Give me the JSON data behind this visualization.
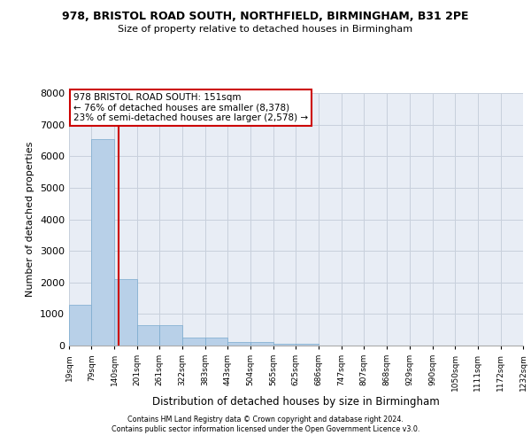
{
  "title1": "978, BRISTOL ROAD SOUTH, NORTHFIELD, BIRMINGHAM, B31 2PE",
  "title2": "Size of property relative to detached houses in Birmingham",
  "xlabel": "Distribution of detached houses by size in Birmingham",
  "ylabel": "Number of detached properties",
  "footnote1": "Contains HM Land Registry data © Crown copyright and database right 2024.",
  "footnote2": "Contains public sector information licensed under the Open Government Licence v3.0.",
  "annotation_line1": "978 BRISTOL ROAD SOUTH: 151sqm",
  "annotation_line2": "← 76% of detached houses are smaller (8,378)",
  "annotation_line3": "23% of semi-detached houses are larger (2,578) →",
  "property_size": 151,
  "bin_edges": [
    19,
    79,
    140,
    201,
    261,
    322,
    383,
    443,
    504,
    565,
    625,
    686,
    747,
    807,
    868,
    929,
    990,
    1050,
    1111,
    1172,
    1232
  ],
  "bar_heights": [
    1300,
    6550,
    2100,
    650,
    640,
    255,
    250,
    120,
    120,
    70,
    70,
    5,
    5,
    2,
    2,
    1,
    1,
    0,
    0,
    0
  ],
  "bar_color": "#b8d0e8",
  "bar_edge_color": "#7aaace",
  "vline_color": "#cc0000",
  "annotation_box_edgecolor": "#cc0000",
  "grid_color": "#c8d0dc",
  "background_color": "#e8edf5",
  "ylim_max": 8000,
  "yticks": [
    0,
    1000,
    2000,
    3000,
    4000,
    5000,
    6000,
    7000,
    8000
  ]
}
